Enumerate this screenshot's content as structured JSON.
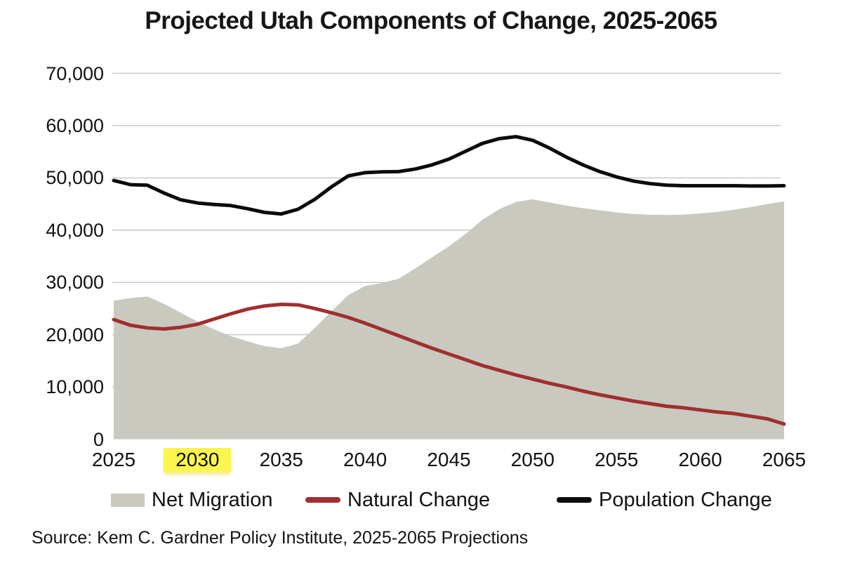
{
  "title": "Projected Utah Components of Change, 2025-2065",
  "source": "Source: Kem C. Gardner Policy Institute, 2025-2065 Projections",
  "colors": {
    "background": "#FFFFFF",
    "gridline": "#C8C8C8",
    "net_migration_fill": "#C9C9C0",
    "natural_change_line": "#A02F2F",
    "population_change_line": "#0B0B0B",
    "highlight_yellow": "#FBF54E",
    "text": "#111111"
  },
  "legend": [
    {
      "label": "Net Migration",
      "type": "area",
      "color": "#C9C9C0"
    },
    {
      "label": "Natural Change",
      "type": "line",
      "color": "#A02F2F"
    },
    {
      "label": "Population Change",
      "type": "line",
      "color": "#0B0B0B"
    }
  ],
  "chart_data": {
    "type": "area",
    "title": "Projected Utah Components of Change, 2025-2065",
    "xlabel": "",
    "ylabel": "",
    "xlim": [
      2025,
      2065
    ],
    "ylim": [
      0,
      70000
    ],
    "grid": true,
    "legend_position": "bottom",
    "highlighted_tick": "2030",
    "x_ticks": [
      2025,
      2030,
      2035,
      2040,
      2045,
      2050,
      2055,
      2060,
      2065
    ],
    "x_tick_labels": [
      "2025",
      "2030",
      "2035",
      "2040",
      "2045",
      "2050",
      "2055",
      "2060",
      "2065"
    ],
    "y_ticks": [
      0,
      10000,
      20000,
      30000,
      40000,
      50000,
      60000,
      70000
    ],
    "y_tick_labels": [
      "0",
      "10,000",
      "20,000",
      "30,000",
      "40,000",
      "50,000",
      "60,000",
      "70,000"
    ],
    "x": [
      2025,
      2026,
      2027,
      2028,
      2029,
      2030,
      2031,
      2032,
      2033,
      2034,
      2035,
      2036,
      2037,
      2038,
      2039,
      2040,
      2041,
      2042,
      2043,
      2044,
      2045,
      2046,
      2047,
      2048,
      2049,
      2050,
      2051,
      2052,
      2053,
      2054,
      2055,
      2056,
      2057,
      2058,
      2059,
      2060,
      2061,
      2062,
      2063,
      2064,
      2065
    ],
    "series": [
      {
        "name": "Net Migration",
        "type": "area",
        "color": "#C9C9C0",
        "values": [
          26500,
          27000,
          27300,
          25900,
          24200,
          22500,
          21000,
          19700,
          18700,
          17800,
          17400,
          18300,
          21300,
          24500,
          27600,
          29300,
          29900,
          30700,
          32700,
          34800,
          36900,
          39300,
          42000,
          44000,
          45400,
          45900,
          45300,
          44700,
          44200,
          43800,
          43400,
          43100,
          42950,
          42900,
          43000,
          43200,
          43500,
          43900,
          44400,
          45000,
          45500
        ]
      },
      {
        "name": "Natural Change",
        "type": "line",
        "color": "#A02F2F",
        "values": [
          22900,
          21800,
          21300,
          21100,
          21400,
          22000,
          23000,
          24000,
          24900,
          25500,
          25800,
          25700,
          25000,
          24200,
          23300,
          22200,
          21000,
          19800,
          18600,
          17400,
          16300,
          15200,
          14100,
          13200,
          12300,
          11500,
          10700,
          10000,
          9200,
          8500,
          7900,
          7300,
          6800,
          6300,
          6000,
          5600,
          5200,
          4900,
          4400,
          3900,
          2900
        ]
      },
      {
        "name": "Population Change",
        "type": "line",
        "color": "#0B0B0B",
        "values": [
          49500,
          48700,
          48600,
          47100,
          45800,
          45200,
          44900,
          44700,
          44100,
          43400,
          43100,
          44000,
          45900,
          48300,
          50400,
          51000,
          51150,
          51200,
          51700,
          52500,
          53600,
          55100,
          56600,
          57500,
          57900,
          57200,
          55700,
          54000,
          52500,
          51200,
          50200,
          49400,
          48900,
          48600,
          48500,
          48500,
          48500,
          48500,
          48450,
          48450,
          48500
        ]
      }
    ]
  }
}
